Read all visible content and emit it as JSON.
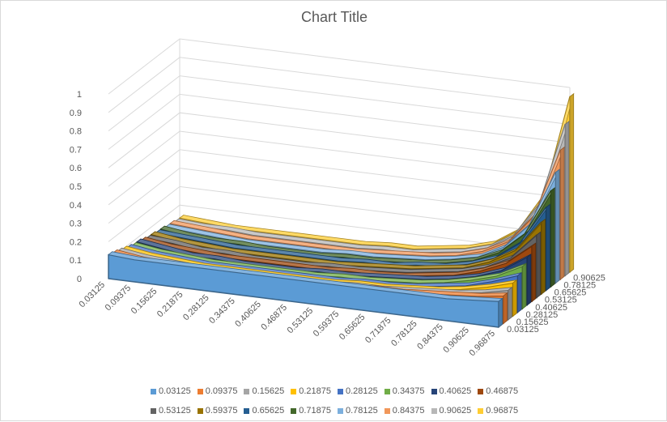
{
  "chart_data": {
    "type": "area",
    "subtype": "3d-area",
    "title": "Chart Title",
    "xlabel": "",
    "ylabel": "",
    "ylim": [
      0,
      1
    ],
    "y_ticks": [
      "0",
      "0.1",
      "0.2",
      "0.3",
      "0.4",
      "0.5",
      "0.6",
      "0.7",
      "0.8",
      "0.9",
      "1"
    ],
    "categories": [
      "0.03125",
      "0.09375",
      "0.15625",
      "0.21875",
      "0.28125",
      "0.34375",
      "0.40625",
      "0.46875",
      "0.53125",
      "0.59375",
      "0.65625",
      "0.71875",
      "0.78125",
      "0.84375",
      "0.90625",
      "0.96875"
    ],
    "depth_tick_labels": [
      "0.03125",
      "0.15625",
      "0.28125",
      "0.40625",
      "0.53125",
      "0.65625",
      "0.78125",
      "0.90625"
    ],
    "legend_position": "bottom",
    "series": [
      {
        "name": "0.03125",
        "color": "#5B9BD5",
        "values": [
          0.13,
          0.12,
          0.12,
          0.12,
          0.12,
          0.12,
          0.12,
          0.12,
          0.12,
          0.12,
          0.12,
          0.12,
          0.12,
          0.12,
          0.13,
          0.14
        ]
      },
      {
        "name": "0.09375",
        "color": "#ED7D31",
        "values": [
          0.12,
          0.1,
          0.09,
          0.09,
          0.09,
          0.09,
          0.09,
          0.09,
          0.09,
          0.09,
          0.1,
          0.1,
          0.11,
          0.12,
          0.13,
          0.15
        ]
      },
      {
        "name": "0.15625",
        "color": "#A5A5A5",
        "values": [
          0.11,
          0.09,
          0.08,
          0.07,
          0.07,
          0.07,
          0.07,
          0.07,
          0.07,
          0.08,
          0.08,
          0.09,
          0.1,
          0.11,
          0.13,
          0.16
        ]
      },
      {
        "name": "0.21875",
        "color": "#FFC000",
        "values": [
          0.1,
          0.08,
          0.07,
          0.06,
          0.06,
          0.06,
          0.06,
          0.06,
          0.06,
          0.07,
          0.07,
          0.08,
          0.09,
          0.11,
          0.14,
          0.18
        ]
      },
      {
        "name": "0.28125",
        "color": "#4472C4",
        "values": [
          0.09,
          0.07,
          0.06,
          0.05,
          0.05,
          0.05,
          0.05,
          0.05,
          0.05,
          0.06,
          0.06,
          0.07,
          0.09,
          0.11,
          0.15,
          0.2
        ]
      },
      {
        "name": "0.34375",
        "color": "#70AD47",
        "values": [
          0.08,
          0.06,
          0.05,
          0.04,
          0.04,
          0.04,
          0.04,
          0.04,
          0.05,
          0.05,
          0.06,
          0.07,
          0.09,
          0.12,
          0.16,
          0.23
        ]
      },
      {
        "name": "0.40625",
        "color": "#264478",
        "values": [
          0.08,
          0.06,
          0.04,
          0.04,
          0.03,
          0.03,
          0.03,
          0.04,
          0.04,
          0.05,
          0.06,
          0.07,
          0.09,
          0.12,
          0.17,
          0.26
        ]
      },
      {
        "name": "0.46875",
        "color": "#9E480E",
        "values": [
          0.07,
          0.05,
          0.04,
          0.03,
          0.03,
          0.03,
          0.03,
          0.03,
          0.04,
          0.04,
          0.05,
          0.07,
          0.09,
          0.13,
          0.19,
          0.3
        ]
      },
      {
        "name": "0.53125",
        "color": "#636363",
        "values": [
          0.06,
          0.05,
          0.03,
          0.03,
          0.02,
          0.02,
          0.02,
          0.03,
          0.03,
          0.04,
          0.05,
          0.07,
          0.09,
          0.13,
          0.2,
          0.34
        ]
      },
      {
        "name": "0.59375",
        "color": "#997300",
        "values": [
          0.06,
          0.04,
          0.03,
          0.02,
          0.02,
          0.02,
          0.02,
          0.02,
          0.03,
          0.04,
          0.05,
          0.07,
          0.09,
          0.14,
          0.22,
          0.39
        ]
      },
      {
        "name": "0.65625",
        "color": "#255E91",
        "values": [
          0.05,
          0.04,
          0.03,
          0.02,
          0.02,
          0.02,
          0.02,
          0.02,
          0.03,
          0.03,
          0.05,
          0.06,
          0.09,
          0.14,
          0.24,
          0.45
        ]
      },
      {
        "name": "0.71875",
        "color": "#43682B",
        "values": [
          0.05,
          0.03,
          0.02,
          0.02,
          0.01,
          0.01,
          0.01,
          0.02,
          0.02,
          0.03,
          0.04,
          0.06,
          0.09,
          0.15,
          0.27,
          0.52
        ]
      },
      {
        "name": "0.78125",
        "color": "#7CAFDD",
        "values": [
          0.04,
          0.03,
          0.02,
          0.01,
          0.01,
          0.01,
          0.01,
          0.02,
          0.02,
          0.03,
          0.04,
          0.06,
          0.09,
          0.16,
          0.3,
          0.6
        ]
      },
      {
        "name": "0.84375",
        "color": "#F1975A",
        "values": [
          0.04,
          0.03,
          0.02,
          0.01,
          0.01,
          0.01,
          0.01,
          0.01,
          0.02,
          0.03,
          0.04,
          0.06,
          0.1,
          0.17,
          0.33,
          0.7
        ]
      },
      {
        "name": "0.90625",
        "color": "#B7B7B7",
        "values": [
          0.03,
          0.02,
          0.02,
          0.01,
          0.01,
          0.01,
          0.01,
          0.01,
          0.02,
          0.02,
          0.04,
          0.06,
          0.1,
          0.18,
          0.37,
          0.82
        ]
      },
      {
        "name": "0.96875",
        "color": "#FFCD33",
        "values": [
          0.03,
          0.02,
          0.01,
          0.01,
          0.01,
          0.01,
          0.01,
          0.01,
          0.02,
          0.02,
          0.04,
          0.06,
          0.1,
          0.19,
          0.4,
          0.95
        ]
      }
    ]
  }
}
